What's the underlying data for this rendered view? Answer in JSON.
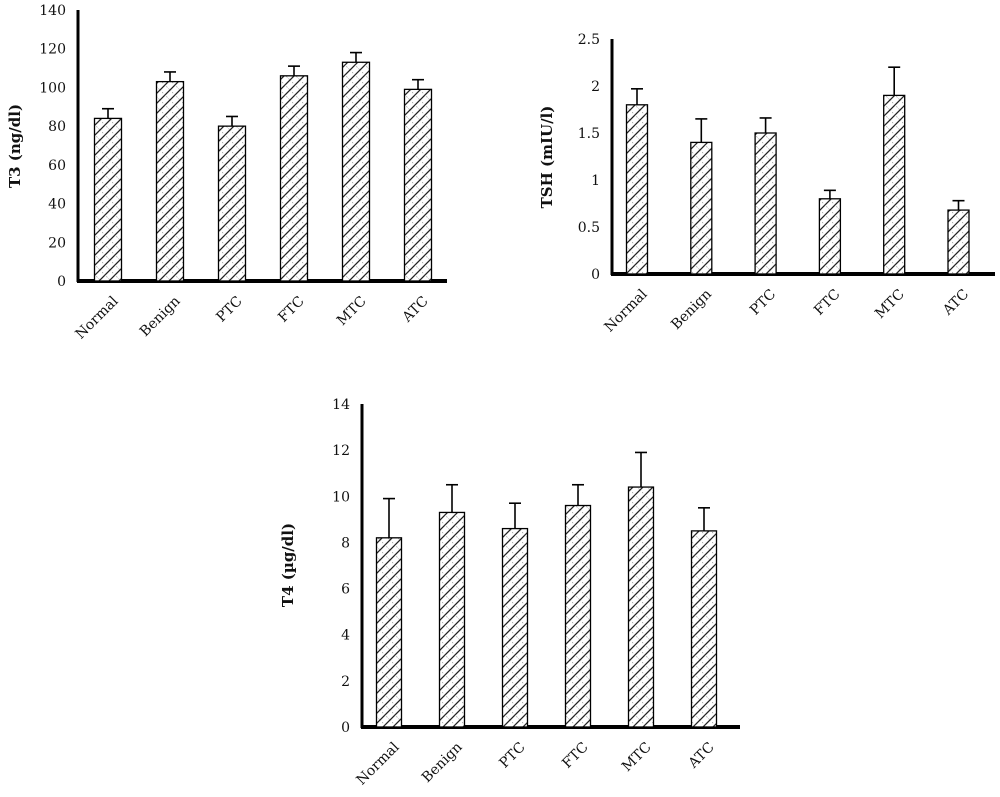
{
  "chart_data": [
    {
      "type": "bar",
      "categories": [
        "Normal",
        "Benign",
        "PTC",
        "FTC",
        "MTC",
        "ATC"
      ],
      "values": [
        84,
        103,
        80,
        106,
        113,
        99
      ],
      "errors": [
        5,
        5,
        5,
        5,
        5,
        5
      ],
      "ylabel": "T3 (ng/dl)",
      "ylim": [
        0,
        140
      ],
      "yticks": [
        "0",
        "20",
        "40",
        "60",
        "80",
        "100",
        "120",
        "140"
      ],
      "grid": false
    },
    {
      "type": "bar",
      "categories": [
        "Normal",
        "Benign",
        "PTC",
        "FTC",
        "MTC",
        "ATC"
      ],
      "values": [
        1.8,
        1.4,
        1.5,
        0.8,
        1.9,
        0.68
      ],
      "errors": [
        0.17,
        0.25,
        0.16,
        0.09,
        0.3,
        0.1
      ],
      "ylabel": "TSH (mIU/l)",
      "ylim": [
        0,
        2.5
      ],
      "yticks": [
        "0",
        "0.5",
        "1",
        "1.5",
        "2",
        "2.5"
      ],
      "grid": false
    },
    {
      "type": "bar",
      "categories": [
        "Normal",
        "Benign",
        "PTC",
        "FTC",
        "MTC",
        "ATC"
      ],
      "values": [
        8.2,
        9.3,
        8.6,
        9.6,
        10.4,
        8.5
      ],
      "errors": [
        1.7,
        1.2,
        1.1,
        0.9,
        1.5,
        1.0
      ],
      "ylabel": "T4 (µg/dl)",
      "ylim": [
        0,
        14
      ],
      "yticks": [
        "0",
        "2",
        "4",
        "6",
        "8",
        "10",
        "12",
        "14"
      ],
      "grid": false
    }
  ]
}
